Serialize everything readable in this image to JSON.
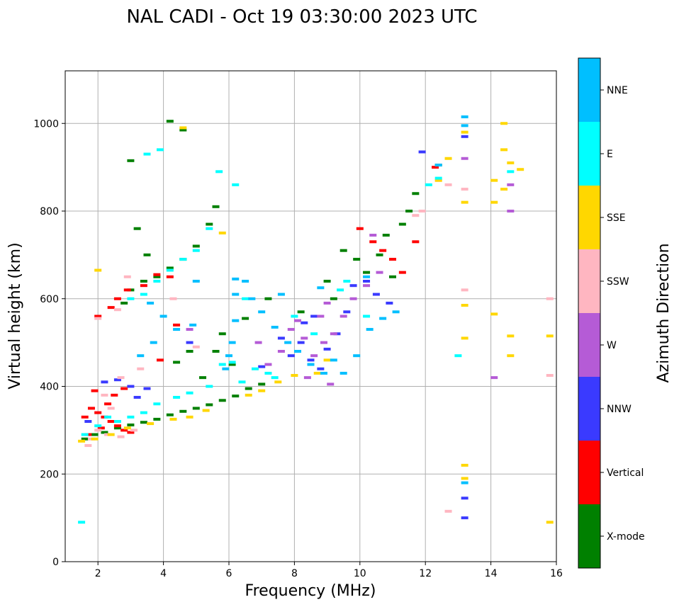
{
  "chart_data": {
    "type": "scatter",
    "title": "NAL CADI - Oct 19 03:30:00 2023 UTC",
    "xlabel": "Frequency (MHz)",
    "ylabel": "Virtual height (km)",
    "xlim": [
      1,
      16
    ],
    "ylim": [
      0,
      1120
    ],
    "xticks": [
      2,
      4,
      6,
      8,
      10,
      12,
      14,
      16
    ],
    "yticks": [
      0,
      200,
      400,
      600,
      800,
      1000
    ],
    "grid": true,
    "colorbar": {
      "label": "Azimuth Direction",
      "categories": [
        {
          "name": "X-mode",
          "color": "#008000"
        },
        {
          "name": "Vertical",
          "color": "#ff0000"
        },
        {
          "name": "NNW",
          "color": "#3a3aff"
        },
        {
          "name": "W",
          "color": "#b55bd6"
        },
        {
          "name": "SSW",
          "color": "#ffb6c1"
        },
        {
          "name": "SSE",
          "color": "#ffd700"
        },
        {
          "name": "E",
          "color": "#00ffff"
        },
        {
          "name": "NNE",
          "color": "#00bfff"
        }
      ]
    },
    "series": [
      {
        "name": "X-mode",
        "points": [
          [
            1.6,
            280
          ],
          [
            1.9,
            290
          ],
          [
            2.2,
            295
          ],
          [
            2.6,
            305
          ],
          [
            3.0,
            312
          ],
          [
            3.4,
            318
          ],
          [
            3.8,
            325
          ],
          [
            4.2,
            335
          ],
          [
            4.6,
            343
          ],
          [
            5.0,
            350
          ],
          [
            5.4,
            358
          ],
          [
            5.8,
            368
          ],
          [
            6.2,
            378
          ],
          [
            6.6,
            395
          ],
          [
            7.0,
            405
          ],
          [
            2.8,
            590
          ],
          [
            3.0,
            620
          ],
          [
            3.4,
            640
          ],
          [
            3.8,
            650
          ],
          [
            4.2,
            670
          ],
          [
            4.6,
            690
          ],
          [
            5.0,
            720
          ],
          [
            5.4,
            770
          ],
          [
            5.6,
            810
          ],
          [
            3.2,
            760
          ],
          [
            3.5,
            700
          ],
          [
            4.4,
            455
          ],
          [
            4.8,
            480
          ],
          [
            5.2,
            420
          ],
          [
            5.6,
            480
          ],
          [
            5.8,
            520
          ],
          [
            6.1,
            450
          ],
          [
            6.5,
            555
          ],
          [
            7.2,
            600
          ],
          [
            8.2,
            570
          ],
          [
            9.0,
            640
          ],
          [
            9.5,
            710
          ],
          [
            9.9,
            690
          ],
          [
            10.2,
            660
          ],
          [
            10.6,
            700
          ],
          [
            11.0,
            650
          ],
          [
            11.3,
            770
          ],
          [
            11.7,
            840
          ],
          [
            12.4,
            905
          ],
          [
            3.0,
            915
          ],
          [
            4.2,
            1005
          ],
          [
            4.6,
            985
          ],
          [
            9.2,
            600
          ],
          [
            10.8,
            745
          ],
          [
            11.5,
            800
          ]
        ]
      },
      {
        "name": "Vertical",
        "points": [
          [
            1.6,
            330
          ],
          [
            1.8,
            350
          ],
          [
            2.0,
            340
          ],
          [
            2.2,
            330
          ],
          [
            2.4,
            320
          ],
          [
            2.6,
            310
          ],
          [
            2.8,
            300
          ],
          [
            3.0,
            295
          ],
          [
            1.7,
            290
          ],
          [
            2.1,
            305
          ],
          [
            1.9,
            390
          ],
          [
            2.3,
            360
          ],
          [
            2.5,
            380
          ],
          [
            2.8,
            395
          ],
          [
            2.4,
            580
          ],
          [
            2.6,
            600
          ],
          [
            2.9,
            620
          ],
          [
            3.4,
            630
          ],
          [
            3.8,
            655
          ],
          [
            4.2,
            650
          ],
          [
            4.4,
            540
          ],
          [
            3.9,
            460
          ],
          [
            2.0,
            560
          ],
          [
            10.0,
            760
          ],
          [
            10.4,
            730
          ],
          [
            10.7,
            710
          ],
          [
            11.0,
            690
          ],
          [
            11.3,
            660
          ],
          [
            11.7,
            730
          ],
          [
            12.3,
            900
          ]
        ]
      },
      {
        "name": "NNW",
        "points": [
          [
            2.6,
            415
          ],
          [
            3.0,
            400
          ],
          [
            3.2,
            375
          ],
          [
            3.5,
            395
          ],
          [
            1.7,
            320
          ],
          [
            2.2,
            410
          ],
          [
            7.6,
            510
          ],
          [
            7.9,
            470
          ],
          [
            8.2,
            500
          ],
          [
            8.5,
            460
          ],
          [
            8.8,
            440
          ],
          [
            9.0,
            485
          ],
          [
            9.3,
            520
          ],
          [
            9.6,
            570
          ],
          [
            9.8,
            630
          ],
          [
            10.2,
            640
          ],
          [
            10.5,
            610
          ],
          [
            10.9,
            590
          ],
          [
            8.3,
            545
          ],
          [
            8.6,
            560
          ],
          [
            13.2,
            145
          ],
          [
            13.2,
            100
          ],
          [
            13.2,
            970
          ],
          [
            4.8,
            500
          ],
          [
            7.0,
            445
          ],
          [
            11.9,
            935
          ]
        ]
      },
      {
        "name": "W",
        "points": [
          [
            7.2,
            450
          ],
          [
            7.6,
            480
          ],
          [
            7.9,
            530
          ],
          [
            8.1,
            550
          ],
          [
            8.3,
            510
          ],
          [
            8.6,
            470
          ],
          [
            8.9,
            500
          ],
          [
            9.2,
            520
          ],
          [
            9.5,
            560
          ],
          [
            9.8,
            600
          ],
          [
            10.2,
            630
          ],
          [
            10.6,
            660
          ],
          [
            8.4,
            420
          ],
          [
            8.8,
            560
          ],
          [
            9.0,
            590
          ],
          [
            6.9,
            500
          ],
          [
            13.2,
            920
          ],
          [
            14.1,
            420
          ],
          [
            14.6,
            860
          ],
          [
            14.6,
            800
          ],
          [
            4.8,
            530
          ],
          [
            10.4,
            745
          ],
          [
            9.1,
            405
          ]
        ]
      },
      {
        "name": "SSW",
        "points": [
          [
            1.8,
            280
          ],
          [
            2.0,
            300
          ],
          [
            2.3,
            290
          ],
          [
            2.7,
            285
          ],
          [
            3.1,
            300
          ],
          [
            2.2,
            380
          ],
          [
            2.4,
            350
          ],
          [
            2.7,
            420
          ],
          [
            3.3,
            440
          ],
          [
            2.0,
            555
          ],
          [
            2.6,
            575
          ],
          [
            2.9,
            650
          ],
          [
            4.3,
            600
          ],
          [
            12.4,
            870
          ],
          [
            12.7,
            860
          ],
          [
            13.2,
            850
          ],
          [
            13.2,
            620
          ],
          [
            12.7,
            115
          ],
          [
            15.8,
            600
          ],
          [
            15.8,
            425
          ],
          [
            11.7,
            790
          ],
          [
            11.9,
            800
          ],
          [
            5.0,
            490
          ],
          [
            1.7,
            265
          ]
        ]
      },
      {
        "name": "SSE",
        "points": [
          [
            1.5,
            275
          ],
          [
            1.9,
            280
          ],
          [
            2.4,
            290
          ],
          [
            2.9,
            305
          ],
          [
            3.6,
            315
          ],
          [
            4.3,
            325
          ],
          [
            4.8,
            330
          ],
          [
            5.3,
            345
          ],
          [
            6.6,
            380
          ],
          [
            7.0,
            390
          ],
          [
            7.5,
            410
          ],
          [
            8.0,
            425
          ],
          [
            8.7,
            430
          ],
          [
            9.0,
            460
          ],
          [
            12.4,
            870
          ],
          [
            12.7,
            920
          ],
          [
            13.2,
            980
          ],
          [
            13.2,
            820
          ],
          [
            13.2,
            585
          ],
          [
            13.2,
            510
          ],
          [
            13.2,
            220
          ],
          [
            13.2,
            190
          ],
          [
            14.1,
            870
          ],
          [
            14.1,
            820
          ],
          [
            14.4,
            850
          ],
          [
            14.4,
            1000
          ],
          [
            14.4,
            940
          ],
          [
            14.6,
            910
          ],
          [
            14.9,
            895
          ],
          [
            14.1,
            565
          ],
          [
            14.6,
            515
          ],
          [
            14.6,
            470
          ],
          [
            15.8,
            515
          ],
          [
            15.8,
            90
          ],
          [
            2.0,
            665
          ],
          [
            4.6,
            990
          ],
          [
            5.8,
            750
          ]
        ]
      },
      {
        "name": "E",
        "points": [
          [
            1.6,
            290
          ],
          [
            2.0,
            310
          ],
          [
            2.3,
            330
          ],
          [
            2.6,
            320
          ],
          [
            3.0,
            330
          ],
          [
            3.4,
            340
          ],
          [
            3.8,
            360
          ],
          [
            4.4,
            375
          ],
          [
            4.8,
            385
          ],
          [
            5.4,
            400
          ],
          [
            5.8,
            450
          ],
          [
            6.1,
            455
          ],
          [
            6.4,
            410
          ],
          [
            6.8,
            440
          ],
          [
            7.2,
            430
          ],
          [
            3.0,
            600
          ],
          [
            3.4,
            610
          ],
          [
            3.8,
            640
          ],
          [
            4.2,
            665
          ],
          [
            4.6,
            690
          ],
          [
            5.0,
            710
          ],
          [
            5.4,
            760
          ],
          [
            5.7,
            890
          ],
          [
            6.2,
            860
          ],
          [
            3.5,
            930
          ],
          [
            3.9,
            940
          ],
          [
            6.5,
            600
          ],
          [
            7.4,
            420
          ],
          [
            8.0,
            560
          ],
          [
            8.6,
            520
          ],
          [
            9.4,
            620
          ],
          [
            10.2,
            560
          ],
          [
            12.4,
            875
          ],
          [
            12.1,
            860
          ],
          [
            14.6,
            890
          ],
          [
            13.0,
            470
          ],
          [
            1.5,
            90
          ],
          [
            9.6,
            640
          ]
        ]
      },
      {
        "name": "NNE",
        "points": [
          [
            6.2,
            645
          ],
          [
            6.2,
            610
          ],
          [
            6.2,
            550
          ],
          [
            6.1,
            500
          ],
          [
            6.0,
            470
          ],
          [
            5.9,
            440
          ],
          [
            6.5,
            640
          ],
          [
            6.7,
            600
          ],
          [
            7.0,
            570
          ],
          [
            7.4,
            535
          ],
          [
            7.8,
            500
          ],
          [
            8.1,
            480
          ],
          [
            8.5,
            450
          ],
          [
            8.9,
            430
          ],
          [
            9.2,
            460
          ],
          [
            9.5,
            430
          ],
          [
            9.9,
            470
          ],
          [
            10.3,
            530
          ],
          [
            10.7,
            555
          ],
          [
            11.1,
            570
          ],
          [
            3.6,
            590
          ],
          [
            4.0,
            560
          ],
          [
            4.4,
            530
          ],
          [
            4.9,
            540
          ],
          [
            3.3,
            470
          ],
          [
            3.7,
            500
          ],
          [
            12.4,
            905
          ],
          [
            13.2,
            1015
          ],
          [
            13.2,
            995
          ],
          [
            13.2,
            180
          ],
          [
            5.0,
            640
          ],
          [
            7.6,
            610
          ],
          [
            8.8,
            625
          ],
          [
            10.2,
            650
          ]
        ]
      }
    ]
  }
}
